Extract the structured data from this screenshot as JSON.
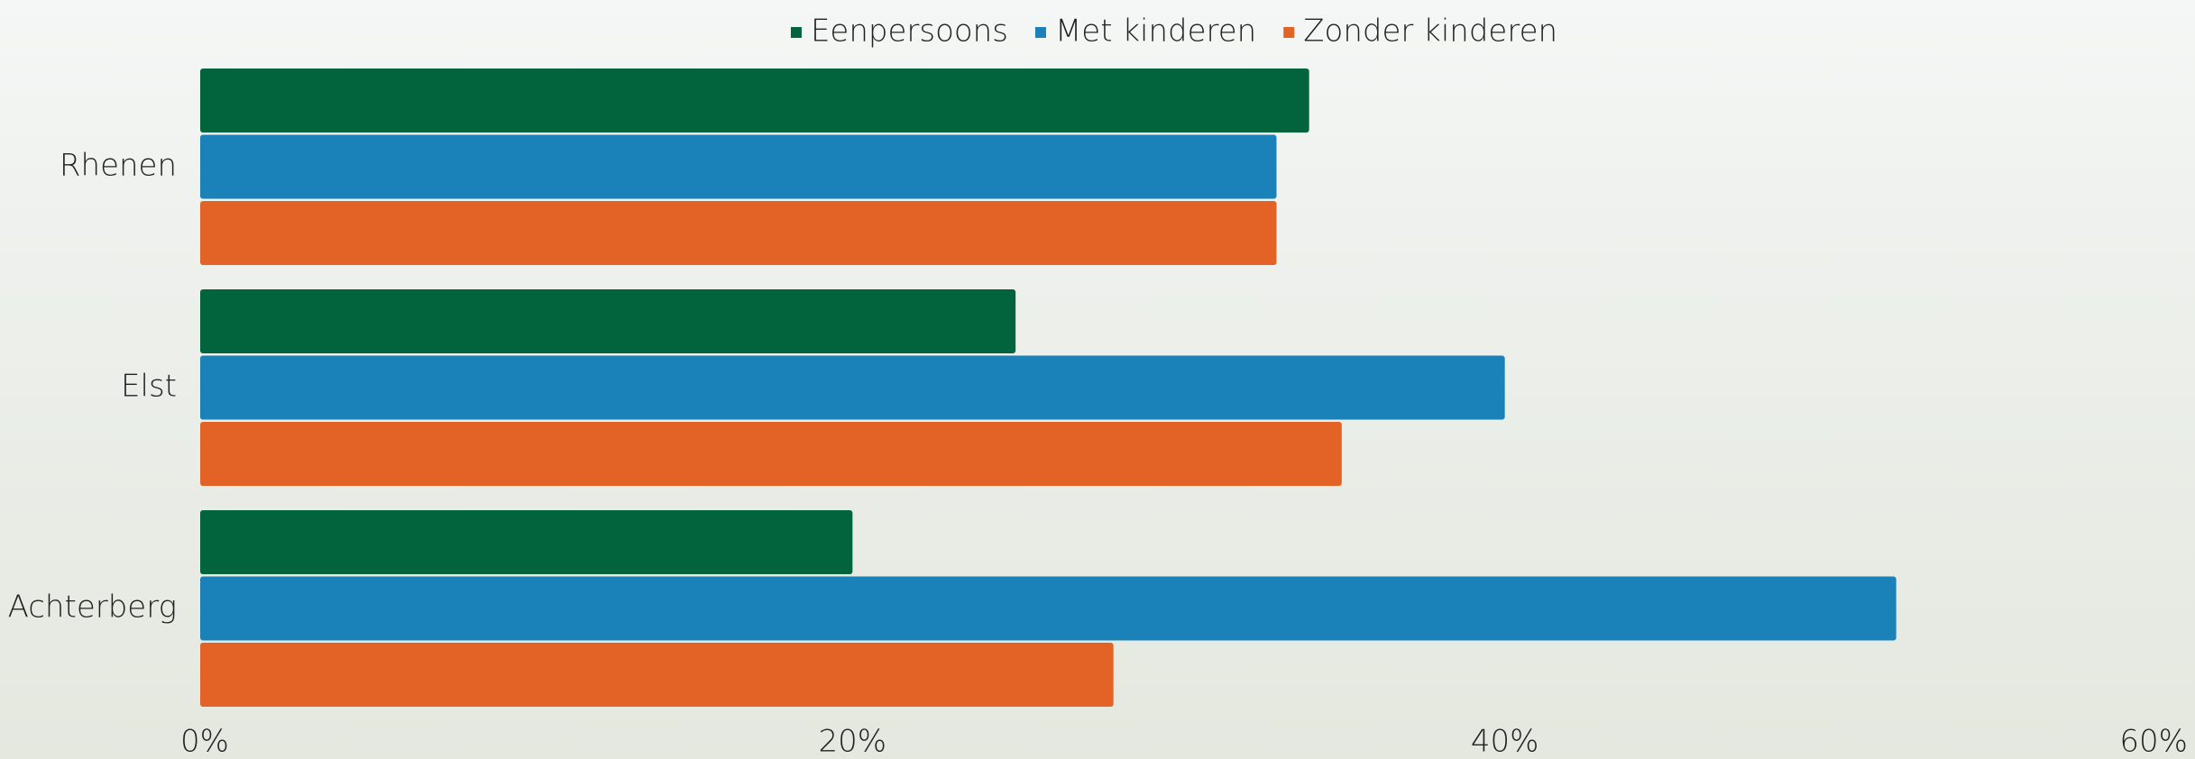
{
  "chart_data": {
    "type": "bar",
    "orientation": "horizontal",
    "categories": [
      "Rhenen",
      "Elst",
      "Achterberg"
    ],
    "series": [
      {
        "name": "Eenpersoons",
        "color": "#02643c",
        "values": [
          34,
          25,
          20
        ]
      },
      {
        "name": "Met kinderen",
        "color": "#1a82b8",
        "values": [
          33,
          40,
          52
        ]
      },
      {
        "name": "Zonder kinderen",
        "color": "#e36225",
        "values": [
          33,
          35,
          28
        ]
      }
    ],
    "xlim": [
      0,
      60
    ],
    "xticks": [
      {
        "value": 0,
        "label": "0%"
      },
      {
        "value": 20,
        "label": "20%"
      },
      {
        "value": 40,
        "label": "40%"
      },
      {
        "value": 60,
        "label": "60%"
      }
    ],
    "legend": "top"
  }
}
